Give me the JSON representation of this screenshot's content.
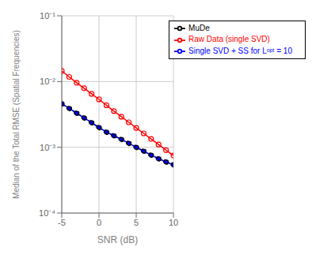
{
  "chart_data": {
    "type": "line",
    "x": [
      -5,
      -4,
      -3,
      -2,
      -1,
      0,
      1,
      2,
      3,
      4,
      5,
      6,
      7,
      8,
      9,
      10
    ],
    "series": [
      {
        "name": "MuDe",
        "color": "#000000",
        "marker": "circle",
        "line_style": "dashed",
        "values": [
          0.0046,
          0.0039,
          0.0033,
          0.0028,
          0.00237,
          0.002,
          0.0017,
          0.0015,
          0.00132,
          0.00115,
          0.001,
          0.000875,
          0.00076,
          0.00067,
          0.0006,
          0.00054
        ]
      },
      {
        "name": "Single SVD + SS for Lᵒᵖᵗ = 10",
        "color": "#0000ff",
        "marker": "circle",
        "line_style": "solid",
        "values": [
          0.0046,
          0.0039,
          0.0033,
          0.0028,
          0.00237,
          0.002,
          0.0017,
          0.0015,
          0.00132,
          0.00115,
          0.001,
          0.000875,
          0.00076,
          0.00067,
          0.0006,
          0.00054
        ]
      },
      {
        "name": "Raw Data (single SVD)",
        "color": "#ff0000",
        "marker": "circle",
        "line_style": "solid",
        "values": [
          0.0145,
          0.01175,
          0.0096,
          0.0079,
          0.0065,
          0.00535,
          0.00435,
          0.00355,
          0.00292,
          0.0024,
          0.00197,
          0.00163,
          0.00134,
          0.0011,
          0.000905,
          0.00075
        ]
      }
    ],
    "xlabel": "SNR (dB)",
    "ylabel": "Median of the Total RMSE (Spatial Frequencies)",
    "xlim": [
      -5,
      10
    ],
    "xticks": [
      -5,
      0,
      5,
      10
    ],
    "ylim": [
      0.0001,
      0.1
    ],
    "yticks": [
      {
        "value": 0.0001,
        "label": "10⁻⁴"
      },
      {
        "value": 0.001,
        "label": "10⁻³"
      },
      {
        "value": 0.01,
        "label": "10⁻²"
      },
      {
        "value": 0.1,
        "label": "10⁻¹"
      }
    ],
    "log": "y",
    "grid": true,
    "legend": "upper right"
  }
}
